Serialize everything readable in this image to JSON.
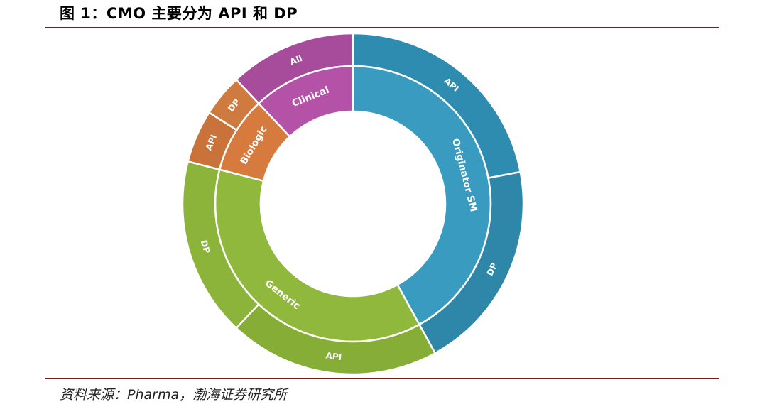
{
  "header": {
    "title": "图 1：CMO 主要分为 API 和 DP"
  },
  "footer": {
    "source": "资料来源：Pharma，渤海证券研究所"
  },
  "chart_data": {
    "type": "sunburst",
    "title": "图 1：CMO 主要分为 API 和 DP",
    "start_angle_deg": 0,
    "direction": "clockwise",
    "inner_ring": [
      {
        "name": "Originator SM",
        "value": 42,
        "color": "#3a9bc0"
      },
      {
        "name": "Generic",
        "value": 37,
        "color": "#8fb83c"
      },
      {
        "name": "Biologic",
        "value": 9,
        "color": "#d77a3e"
      },
      {
        "name": "Clinical",
        "value": 12,
        "color": "#b352a6"
      }
    ],
    "outer_ring": [
      {
        "name": "API",
        "parent": "Originator SM",
        "value": 22,
        "color": "#2e8cb0"
      },
      {
        "name": "DP",
        "parent": "Originator SM",
        "value": 20,
        "color": "#2e86a8"
      },
      {
        "name": "API",
        "parent": "Generic",
        "value": 20,
        "color": "#86ad36"
      },
      {
        "name": "DP",
        "parent": "Generic",
        "value": 17,
        "color": "#8cb43a"
      },
      {
        "name": "API",
        "parent": "Biologic",
        "value": 5,
        "color": "#c9733b"
      },
      {
        "name": "DP",
        "parent": "Biologic",
        "value": 4,
        "color": "#cf7a3f"
      },
      {
        "name": "All",
        "parent": "Clinical",
        "value": 12,
        "color": "#a64c9b"
      }
    ]
  }
}
